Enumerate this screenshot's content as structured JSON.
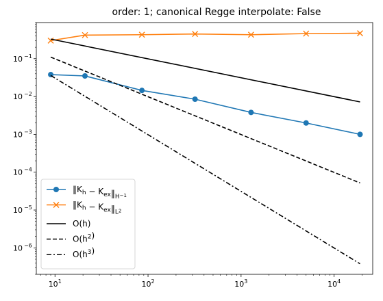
{
  "chart_data": {
    "type": "line",
    "title": "order: 1; canonical Regge interpolate: False",
    "xlabel": "",
    "ylabel": "",
    "xscale": "log",
    "yscale": "log",
    "xlim": [
      6.3,
      26000
    ],
    "ylim": [
      2e-07,
      0.9
    ],
    "grid": false,
    "legend_placement": "lower-left",
    "x_ticks": [
      {
        "value": 10,
        "base": "10",
        "exp": "1"
      },
      {
        "value": 100,
        "base": "10",
        "exp": "2"
      },
      {
        "value": 1000,
        "base": "10",
        "exp": "3"
      },
      {
        "value": 10000,
        "base": "10",
        "exp": "4"
      }
    ],
    "y_ticks": [
      {
        "value": 1e-06,
        "base": "10",
        "exp": "−6"
      },
      {
        "value": 1e-05,
        "base": "10",
        "exp": "−5"
      },
      {
        "value": 0.0001,
        "base": "10",
        "exp": "−4"
      },
      {
        "value": 0.001,
        "base": "10",
        "exp": "−3"
      },
      {
        "value": 0.01,
        "base": "10",
        "exp": "−2"
      },
      {
        "value": 0.1,
        "base": "10",
        "exp": "−1"
      }
    ],
    "series": [
      {
        "label_main": "‖K",
        "label_parts": [
          {
            "t": "‖K"
          },
          {
            "t": "h",
            "sub": true
          },
          {
            "t": " − K"
          },
          {
            "t": "ex",
            "sub": true
          },
          {
            "t": "‖"
          },
          {
            "t": "H",
            "sub": true
          },
          {
            "t": "−1",
            "subsup": true
          }
        ],
        "color": "#1f77b4",
        "marker": "circle",
        "dash": "solid",
        "x": [
          9,
          21,
          86,
          320,
          1280,
          5000,
          19000
        ],
        "y": [
          0.038,
          0.035,
          0.0145,
          0.0085,
          0.0038,
          0.002,
          0.001
        ]
      },
      {
        "label_main": "‖K",
        "label_parts": [
          {
            "t": "‖K"
          },
          {
            "t": "h",
            "sub": true
          },
          {
            "t": " − K"
          },
          {
            "t": "ex",
            "sub": true
          },
          {
            "t": "‖"
          },
          {
            "t": "L",
            "sub": true
          },
          {
            "t": "2",
            "subsup": true
          }
        ],
        "color": "#ff7f0e",
        "marker": "x",
        "dash": "solid",
        "x": [
          9,
          21,
          86,
          320,
          1280,
          5000,
          19000
        ],
        "y": [
          0.3,
          0.42,
          0.43,
          0.45,
          0.43,
          0.46,
          0.47
        ]
      },
      {
        "label_parts": [
          {
            "t": "O"
          },
          {
            "t": "(h)"
          }
        ],
        "color": "#000000",
        "marker": "none",
        "dash": "solid",
        "x": [
          9,
          19000
        ],
        "y": [
          0.33,
          0.0072
        ]
      },
      {
        "label_parts": [
          {
            "t": "O"
          },
          {
            "t": "(h"
          },
          {
            "t": "2",
            "sup": true
          },
          {
            "t": ")"
          }
        ],
        "color": "#000000",
        "marker": "none",
        "dash": "dashed",
        "x": [
          9,
          19000
        ],
        "y": [
          0.11,
          5.2e-05
        ]
      },
      {
        "label_parts": [
          {
            "t": "O"
          },
          {
            "t": "(h"
          },
          {
            "t": "3",
            "sup": true
          },
          {
            "t": ")"
          }
        ],
        "color": "#000000",
        "marker": "none",
        "dash": "dashdot",
        "x": [
          9,
          19000
        ],
        "y": [
          0.036,
          3.8e-07
        ]
      }
    ]
  }
}
